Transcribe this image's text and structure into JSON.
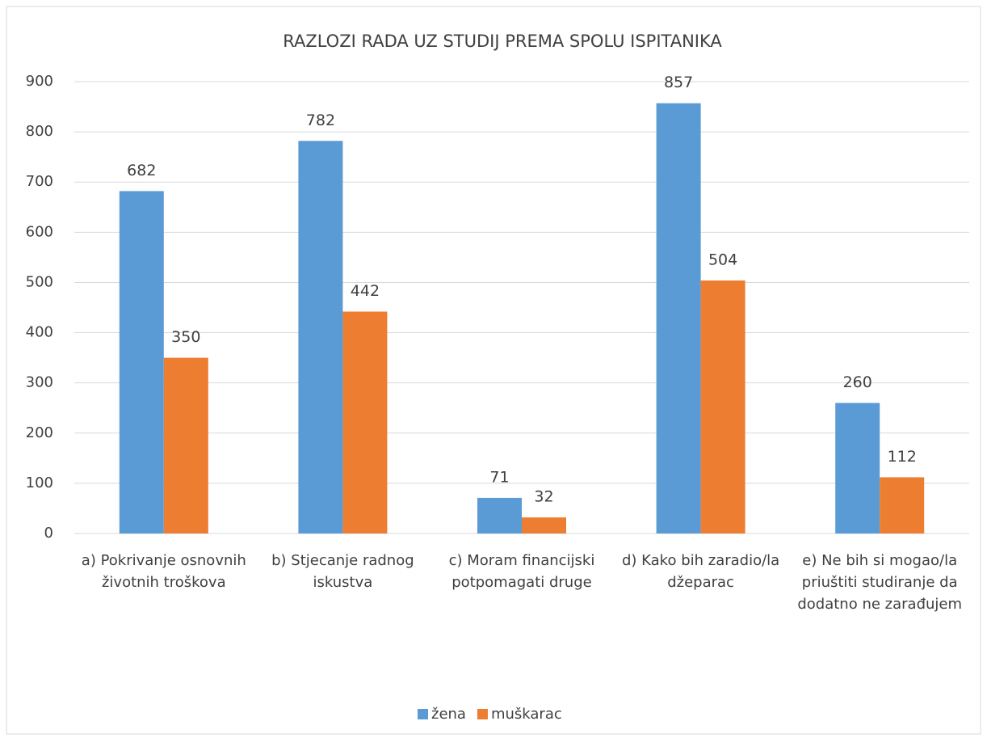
{
  "chart_data": {
    "type": "bar",
    "title": "RAZLOZI RADA UZ STUDIJ PREMA SPOLU ISPITANIKA",
    "categories": [
      "a) Pokrivanje osnovnih životnih troškova",
      "b) Stjecanje radnog iskustva",
      "c) Moram financijski potpomagati druge",
      "d) Kako bih zaradio/la džeparac",
      "e) Ne bih si mogao/la priuštiti studiranje da dodatno ne zarađujem"
    ],
    "series": [
      {
        "name": "žena",
        "color": "#5b9bd5",
        "values": [
          682,
          782,
          71,
          857,
          260
        ]
      },
      {
        "name": "muškarac",
        "color": "#ed7d31",
        "values": [
          350,
          442,
          32,
          504,
          112
        ]
      }
    ],
    "ylim": [
      0,
      900
    ],
    "yticks": [
      0,
      100,
      200,
      300,
      400,
      500,
      600,
      700,
      800,
      900
    ],
    "grid": true,
    "legend": "bottom"
  }
}
